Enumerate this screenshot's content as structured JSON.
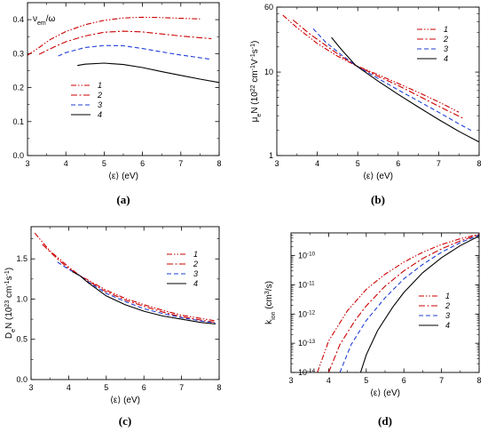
{
  "legend_labels": [
    "1",
    "2",
    "3",
    "4"
  ],
  "series_styles": [
    {
      "color": "#cc0000",
      "dash": "6,2,1.5,2,1.5,2"
    },
    {
      "color": "#cc0000",
      "dash": "7,2.5,2,2.5"
    },
    {
      "color": "#1f3fd6",
      "dash": "5,3"
    },
    {
      "color": "#000000",
      "dash": ""
    }
  ],
  "chart_data": [
    {
      "type": "line",
      "panel_label": "(a)",
      "xlabel": "⟨ε⟩ (eV)",
      "ylabel": "ν_em/ω",
      "ylabel_main": "ν",
      "ylabel_sub": "em",
      "ylabel_rest": "/ω",
      "xlim": [
        3,
        8
      ],
      "ylim": [
        0,
        0.45
      ],
      "xticks": [
        3,
        4,
        5,
        6,
        7,
        8
      ],
      "xtick_labels": [
        "3",
        "4",
        "5",
        "6",
        "7",
        "8"
      ],
      "yticks": [
        0,
        0.1,
        0.2,
        0.3,
        0.4
      ],
      "ytick_labels": [
        "0.0",
        "0.1",
        "0.2",
        "0.3",
        "0.4"
      ],
      "yscale": "linear",
      "legend": "bottom-center",
      "series": [
        {
          "name": "1",
          "x": [
            3.0,
            3.3,
            3.6,
            4.0,
            4.5,
            5.0,
            5.5,
            6.0,
            6.5,
            7.0,
            7.5
          ],
          "y": [
            0.295,
            0.318,
            0.342,
            0.365,
            0.385,
            0.398,
            0.405,
            0.407,
            0.406,
            0.404,
            0.402
          ]
        },
        {
          "name": "2",
          "x": [
            3.3,
            3.7,
            4.0,
            4.5,
            5.0,
            5.5,
            6.0,
            6.5,
            7.0,
            7.5,
            7.8
          ],
          "y": [
            0.298,
            0.32,
            0.335,
            0.352,
            0.363,
            0.366,
            0.364,
            0.358,
            0.352,
            0.347,
            0.344
          ]
        },
        {
          "name": "3",
          "x": [
            3.8,
            4.0,
            4.5,
            5.0,
            5.5,
            6.0,
            6.5,
            7.0,
            7.5,
            7.8
          ],
          "y": [
            0.293,
            0.303,
            0.318,
            0.324,
            0.323,
            0.315,
            0.305,
            0.296,
            0.288,
            0.283
          ]
        },
        {
          "name": "4",
          "x": [
            4.3,
            4.5,
            5.0,
            5.5,
            6.0,
            6.5,
            7.0,
            7.5,
            8.0
          ],
          "y": [
            0.265,
            0.269,
            0.272,
            0.268,
            0.259,
            0.247,
            0.236,
            0.225,
            0.215
          ]
        }
      ]
    },
    {
      "type": "line",
      "panel_label": "(b)",
      "xlabel": "⟨ε⟩ (eV)",
      "ylabel": "μ_eN (10^22 cm^-1 V^-1 s^-1)",
      "ylabel_parts": [
        {
          "t": "μ",
          "s": "n"
        },
        {
          "t": "e",
          "s": "sub"
        },
        {
          "t": "N (10",
          "s": "n"
        },
        {
          "t": "22",
          "s": "sup"
        },
        {
          "t": " cm",
          "s": "n"
        },
        {
          "t": "-1",
          "s": "sup"
        },
        {
          "t": "V",
          "s": "n"
        },
        {
          "t": "-1",
          "s": "sup"
        },
        {
          "t": "s",
          "s": "n"
        },
        {
          "t": "-1",
          "s": "sup"
        },
        {
          "t": ")",
          "s": "n"
        }
      ],
      "xlim": [
        3,
        8
      ],
      "ylim": [
        1,
        60
      ],
      "xticks": [
        3,
        4,
        5,
        6,
        7,
        8
      ],
      "xtick_labels": [
        "3",
        "4",
        "5",
        "6",
        "7",
        "8"
      ],
      "yticks": [
        1,
        10,
        60
      ],
      "ytick_labels": [
        "1",
        "10",
        "60"
      ],
      "yscale": "log",
      "legend": "top-right",
      "series": [
        {
          "name": "1",
          "x": [
            3.15,
            3.5,
            4.0,
            4.5,
            4.95,
            5.5,
            6.0,
            6.5,
            7.0,
            7.5
          ],
          "y": [
            48,
            34,
            22,
            15.5,
            12.0,
            9.3,
            7.3,
            5.7,
            4.4,
            3.3
          ]
        },
        {
          "name": "2",
          "x": [
            3.4,
            3.8,
            4.2,
            4.6,
            4.95,
            5.5,
            6.0,
            6.5,
            7.0,
            7.6
          ],
          "y": [
            42,
            29,
            21,
            15.3,
            12.0,
            8.9,
            6.9,
            5.2,
            3.9,
            2.8
          ]
        },
        {
          "name": "3",
          "x": [
            3.9,
            4.2,
            4.6,
            4.95,
            5.5,
            6.0,
            6.5,
            7.0,
            7.5,
            7.8
          ],
          "y": [
            33,
            23,
            16,
            12.0,
            8.4,
            6.1,
            4.5,
            3.3,
            2.4,
            2.0
          ]
        },
        {
          "name": "4",
          "x": [
            4.35,
            4.6,
            4.95,
            5.5,
            6.0,
            6.5,
            7.0,
            7.5,
            8.0
          ],
          "y": [
            26,
            18.5,
            12.0,
            7.8,
            5.4,
            3.8,
            2.7,
            1.95,
            1.45
          ]
        }
      ]
    },
    {
      "type": "line",
      "panel_label": "(c)",
      "xlabel": "⟨ε⟩ (eV)",
      "ylabel": "D_eN (10^23 cm^-1 s^-1)",
      "ylabel_parts": [
        {
          "t": "D",
          "s": "n"
        },
        {
          "t": "e",
          "s": "sub"
        },
        {
          "t": "N (10",
          "s": "n"
        },
        {
          "t": "23",
          "s": "sup"
        },
        {
          "t": " cm",
          "s": "n"
        },
        {
          "t": "-1",
          "s": "sup"
        },
        {
          "t": "s",
          "s": "n"
        },
        {
          "t": "-1",
          "s": "sup"
        },
        {
          "t": ")",
          "s": "n"
        }
      ],
      "xlim": [
        3,
        8
      ],
      "ylim": [
        0,
        1.9
      ],
      "xticks": [
        3,
        4,
        5,
        6,
        7,
        8
      ],
      "xtick_labels": [
        "3",
        "4",
        "5",
        "6",
        "7",
        "8"
      ],
      "yticks": [
        0,
        0.5,
        1.0,
        1.5
      ],
      "ytick_labels": [
        "0.0",
        "0.5",
        "1.0",
        "1.5"
      ],
      "yscale": "linear",
      "legend": "right",
      "series": [
        {
          "name": "1",
          "x": [
            3.1,
            3.5,
            4.0,
            4.3,
            4.5,
            5.0,
            5.5,
            6.0,
            6.5,
            7.0,
            7.5,
            7.9
          ],
          "y": [
            1.82,
            1.6,
            1.4,
            1.29,
            1.24,
            1.11,
            1.01,
            0.93,
            0.86,
            0.8,
            0.76,
            0.73
          ]
        },
        {
          "name": "2",
          "x": [
            3.3,
            3.7,
            4.0,
            4.3,
            4.5,
            5.0,
            5.5,
            6.0,
            6.5,
            7.0,
            7.5,
            7.9
          ],
          "y": [
            1.68,
            1.5,
            1.38,
            1.29,
            1.23,
            1.09,
            0.99,
            0.91,
            0.84,
            0.78,
            0.74,
            0.71
          ]
        },
        {
          "name": "3",
          "x": [
            3.7,
            4.0,
            4.3,
            4.5,
            5.0,
            5.5,
            6.0,
            6.5,
            7.0,
            7.5,
            7.9
          ],
          "y": [
            1.46,
            1.37,
            1.29,
            1.22,
            1.07,
            0.97,
            0.88,
            0.82,
            0.77,
            0.73,
            0.7
          ]
        },
        {
          "name": "4",
          "x": [
            4.1,
            4.3,
            4.5,
            5.0,
            5.5,
            6.0,
            6.5,
            7.0,
            7.5,
            7.9
          ],
          "y": [
            1.34,
            1.29,
            1.21,
            1.04,
            0.93,
            0.85,
            0.79,
            0.75,
            0.71,
            0.69
          ]
        }
      ]
    },
    {
      "type": "line",
      "panel_label": "(d)",
      "xlabel": "⟨ε⟩ (eV)",
      "ylabel": "k_ion (cm^3/s)",
      "ylabel_parts": [
        {
          "t": "k",
          "s": "n"
        },
        {
          "t": "ion",
          "s": "sub"
        },
        {
          "t": " (cm",
          "s": "n"
        },
        {
          "t": "3",
          "s": "sup"
        },
        {
          "t": "/s)",
          "s": "n"
        }
      ],
      "xlim": [
        3,
        8
      ],
      "ylim": [
        1e-14,
        6e-10
      ],
      "xticks": [
        3,
        4,
        5,
        6,
        7,
        8
      ],
      "xtick_labels": [
        "3",
        "4",
        "5",
        "6",
        "7",
        "8"
      ],
      "yticks": [
        1e-14,
        1e-13,
        1e-12,
        1e-11,
        1e-10
      ],
      "ytick_labels": [
        {
          "base": "10",
          "exp": "-14"
        },
        {
          "base": "10",
          "exp": "-13"
        },
        {
          "base": "10",
          "exp": "-12"
        },
        {
          "base": "10",
          "exp": "-11"
        },
        {
          "base": "10",
          "exp": "-10"
        }
      ],
      "yscale": "log",
      "legend": "bottom-right",
      "series": [
        {
          "name": "1",
          "x": [
            3.7,
            4.0,
            4.5,
            5.0,
            5.5,
            6.0,
            6.5,
            7.0,
            7.5,
            8.0
          ],
          "y": [
            1e-14,
            1.2e-13,
            1.3e-12,
            7e-12,
            2.3e-11,
            6e-11,
            1.3e-10,
            2.4e-10,
            3.8e-10,
            5.4e-10
          ]
        },
        {
          "name": "2",
          "x": [
            4.0,
            4.3,
            4.7,
            5.0,
            5.5,
            6.0,
            6.5,
            7.0,
            7.5,
            8.0
          ],
          "y": [
            1e-14,
            9e-14,
            6e-13,
            1.9e-12,
            9e-12,
            3e-11,
            8e-11,
            1.7e-10,
            3.2e-10,
            5.2e-10
          ]
        },
        {
          "name": "3",
          "x": [
            4.3,
            4.6,
            5.0,
            5.5,
            6.0,
            6.5,
            7.0,
            7.5,
            8.0
          ],
          "y": [
            1e-14,
            9e-14,
            6e-13,
            3.6e-12,
            1.6e-11,
            5e-11,
            1.3e-10,
            2.8e-10,
            5e-10
          ]
        },
        {
          "name": "4",
          "x": [
            4.85,
            5.0,
            5.3,
            5.7,
            6.0,
            6.5,
            7.0,
            7.5,
            8.0
          ],
          "y": [
            1e-14,
            4e-14,
            2.7e-13,
            1.7e-12,
            5.5e-12,
            2.6e-11,
            8.5e-11,
            2.2e-10,
            4.7e-10
          ]
        }
      ]
    }
  ]
}
